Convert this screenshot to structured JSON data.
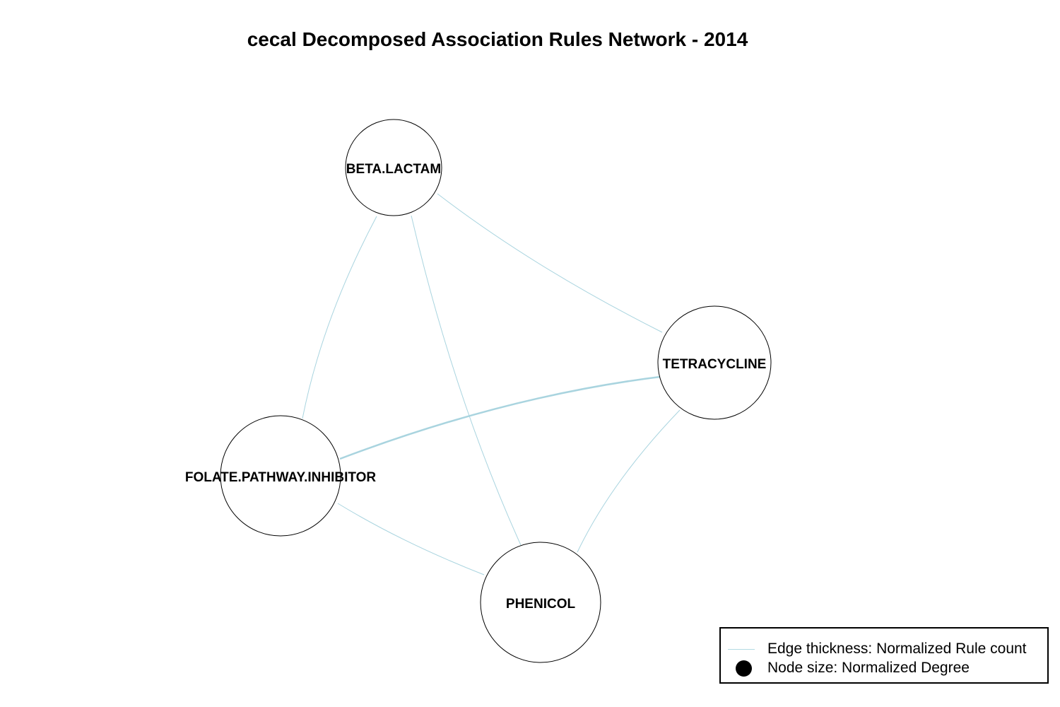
{
  "title": "cecal Decomposed Association Rules Network - 2014",
  "colors": {
    "edge": "#a9d4df",
    "node_fill": "#ffffff",
    "node_stroke": "#000000"
  },
  "nodes": [
    {
      "id": "beta",
      "label": "BETA.LACTAM"
    },
    {
      "id": "tetra",
      "label": "TETRACYCLINE"
    },
    {
      "id": "folate",
      "label": "FOLATE.PATHWAY.INHIBITOR"
    },
    {
      "id": "phenicol",
      "label": "PHENICOL"
    }
  ],
  "edges": [
    {
      "source": "beta",
      "target": "tetra"
    },
    {
      "source": "beta",
      "target": "folate"
    },
    {
      "source": "beta",
      "target": "phenicol"
    },
    {
      "source": "tetra",
      "target": "folate"
    },
    {
      "source": "tetra",
      "target": "phenicol"
    },
    {
      "source": "folate",
      "target": "phenicol"
    }
  ],
  "legend": {
    "edge_text": "Edge thickness: Normalized Rule count",
    "node_text": "Node size: Normalized Degree"
  }
}
